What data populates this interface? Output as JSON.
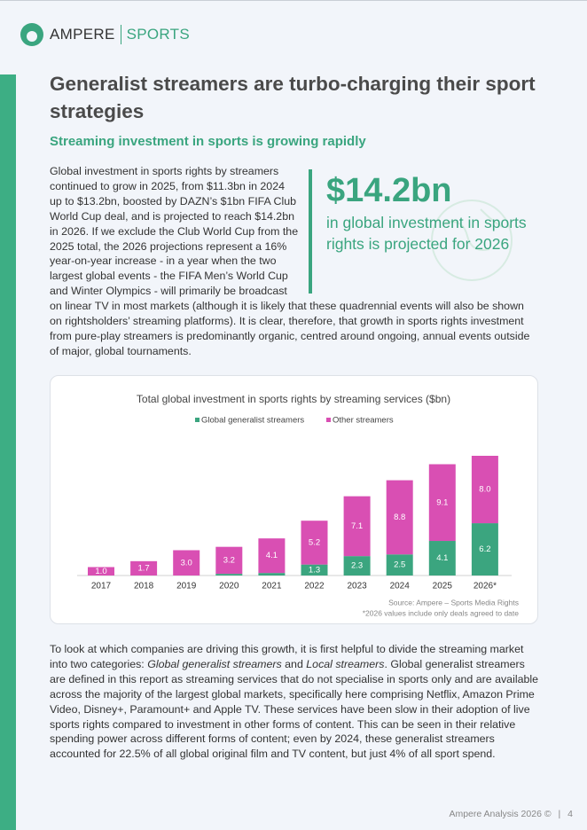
{
  "logo": {
    "brand": "AMPERE",
    "product": "SPORTS"
  },
  "title": "Generalist streamers are turbo-charging their sport strategies",
  "subtitle": "Streaming investment in sports is growing rapidly",
  "paragraph_1": "Global investment in sports rights by streamers continued to grow in 2025, from $11.3bn in 2024 up to $13.2bn, boosted by DAZN’s $1bn FIFA Club World Cup deal, and is projected to reach $14.2bn in 2026. If we exclude the Club World Cup from the 2025 total, the 2026 projections represent a 16% year-on-year increase - in a year when the two largest global events - the FIFA Men’s World Cup and Winter Olympics - will primarily be broadcast on linear TV in most markets (although it is likely that these quadrennial events will also be shown on rightsholders’ streaming platforms). It is clear, therefore, that growth in sports rights investment from pure-play streamers is predominantly organic, centred around ongoing, annual events outside of major, global tournaments.",
  "callout": {
    "figure": "$14.2bn",
    "text": "in global investment in sports rights is projected for 2026"
  },
  "chart_data": {
    "type": "bar",
    "stacked": true,
    "title": "Total global investment in sports rights by streaming services ($bn)",
    "categories": [
      "2017",
      "2018",
      "2019",
      "2020",
      "2021",
      "2022",
      "2023",
      "2024",
      "2025",
      "2026*"
    ],
    "series": [
      {
        "name": "Global generalist streamers",
        "color": "#3ba57f",
        "values": [
          0,
          0,
          0,
          0.2,
          0.3,
          1.3,
          2.3,
          2.5,
          4.1,
          6.2
        ],
        "value_labels": [
          null,
          null,
          null,
          null,
          null,
          "1.3",
          "2.3",
          "2.5",
          "4.1",
          "6.2"
        ]
      },
      {
        "name": "Other streamers",
        "color": "#d94fb3",
        "values": [
          1.0,
          1.7,
          3.0,
          3.2,
          4.1,
          5.2,
          7.1,
          8.8,
          9.1,
          8.0
        ],
        "value_labels": [
          "1.0",
          "1.7",
          "3.0",
          "3.2",
          "4.1",
          "5.2",
          "7.1",
          "8.8",
          "9.1",
          "8.0"
        ]
      }
    ],
    "source": "Source: Ampere – Sports Media Rights",
    "note": "*2026 values include only deals agreed to date"
  },
  "paragraph_2": [
    {
      "text": "To look at which companies are driving this growth, it is first helpful to divide the streaming market into two categories: ",
      "italic": false
    },
    {
      "text": "Global generalist streamers",
      "italic": true
    },
    {
      "text": " and ",
      "italic": false
    },
    {
      "text": "Local streamers",
      "italic": true
    },
    {
      "text": ". Global generalist streamers are defined in this report as streaming services that do not specialise in sports only and are available across the majority of the largest global markets, specifically here comprising Netflix, Amazon Prime Video, Disney+, Paramount+ and Apple TV. These services have been slow in their adoption of live sports rights compared to investment in other forms of content. This can be seen in their relative spending power across different forms of content; even by 2024, these generalist streamers accounted for 22.5% of all global original film and TV content, but just 4% of all sport spend.",
      "italic": false
    }
  ],
  "footer": {
    "text": "Ampere Analysis 2026 ©",
    "page": 4
  }
}
